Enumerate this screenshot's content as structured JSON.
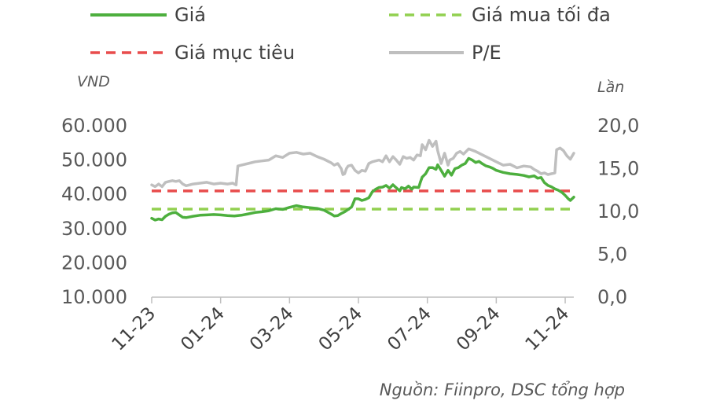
{
  "chart_data": {
    "type": "line",
    "legend": {
      "position": "top",
      "entries": [
        {
          "key": "price",
          "label": "Giá",
          "color": "#4daf3e",
          "style": "solid"
        },
        {
          "key": "buy_max",
          "label": "Giá mua tối đa",
          "color": "#92d050",
          "style": "dashed"
        },
        {
          "key": "target",
          "label": "Giá mục tiêu",
          "color": "#e84c4c",
          "style": "dashed"
        },
        {
          "key": "pe",
          "label": "P/E",
          "color": "#bfbfbf",
          "style": "solid"
        }
      ]
    },
    "y_left": {
      "unit": "VND",
      "ticks": [
        "60.000",
        "50.000",
        "40.000",
        "30.000",
        "20.000",
        "10.000"
      ],
      "tick_values": [
        60000,
        50000,
        40000,
        30000,
        20000,
        10000
      ],
      "range": [
        10000,
        60000
      ]
    },
    "y_right": {
      "unit": "Lần",
      "ticks": [
        "20,0",
        "15,0",
        "10,0",
        "5,0",
        "0,0"
      ],
      "tick_values": [
        20,
        15,
        10,
        5,
        0
      ],
      "range": [
        0,
        20
      ]
    },
    "x_axis": {
      "ticks": [
        "11-23",
        "01-24",
        "03-24",
        "05-24",
        "07-24",
        "09-24",
        "11-24"
      ],
      "tick_positions": [
        0,
        2,
        4,
        6,
        8,
        10,
        12
      ],
      "range": [
        0,
        12.25
      ]
    },
    "reference_lines": {
      "target_price": 41000,
      "max_buy_price": 35700
    },
    "series": [
      {
        "name": "Giá",
        "axis": "left",
        "color": "#4daf3e",
        "points": [
          [
            0,
            33000
          ],
          [
            0.1,
            32500
          ],
          [
            0.2,
            32800
          ],
          [
            0.3,
            32600
          ],
          [
            0.4,
            33600
          ],
          [
            0.5,
            34200
          ],
          [
            0.6,
            34600
          ],
          [
            0.7,
            34700
          ],
          [
            0.8,
            34000
          ],
          [
            0.9,
            33300
          ],
          [
            1.0,
            33200
          ],
          [
            1.2,
            33600
          ],
          [
            1.4,
            33900
          ],
          [
            1.6,
            34000
          ],
          [
            1.8,
            34100
          ],
          [
            2.0,
            34000
          ],
          [
            2.2,
            33800
          ],
          [
            2.4,
            33700
          ],
          [
            2.6,
            33900
          ],
          [
            2.8,
            34300
          ],
          [
            3.0,
            34700
          ],
          [
            3.2,
            34900
          ],
          [
            3.4,
            35200
          ],
          [
            3.6,
            35800
          ],
          [
            3.8,
            35600
          ],
          [
            4.0,
            36200
          ],
          [
            4.2,
            36700
          ],
          [
            4.4,
            36300
          ],
          [
            4.6,
            36100
          ],
          [
            4.8,
            35900
          ],
          [
            5.0,
            35400
          ],
          [
            5.2,
            34300
          ],
          [
            5.3,
            33700
          ],
          [
            5.4,
            33800
          ],
          [
            5.5,
            34400
          ],
          [
            5.6,
            34900
          ],
          [
            5.7,
            35600
          ],
          [
            5.8,
            36300
          ],
          [
            5.85,
            37400
          ],
          [
            5.9,
            38700
          ],
          [
            6.0,
            38700
          ],
          [
            6.1,
            38200
          ],
          [
            6.2,
            38500
          ],
          [
            6.3,
            39000
          ],
          [
            6.4,
            40700
          ],
          [
            6.5,
            41500
          ],
          [
            6.6,
            42000
          ],
          [
            6.7,
            42100
          ],
          [
            6.8,
            42600
          ],
          [
            6.9,
            41800
          ],
          [
            7.0,
            42800
          ],
          [
            7.1,
            41900
          ],
          [
            7.2,
            41000
          ],
          [
            7.25,
            42000
          ],
          [
            7.35,
            41600
          ],
          [
            7.45,
            42400
          ],
          [
            7.55,
            41500
          ],
          [
            7.6,
            42100
          ],
          [
            7.75,
            42000
          ],
          [
            7.8,
            43600
          ],
          [
            7.85,
            45000
          ],
          [
            7.95,
            46000
          ],
          [
            8.05,
            47800
          ],
          [
            8.15,
            47800
          ],
          [
            8.25,
            47300
          ],
          [
            8.3,
            48600
          ],
          [
            8.4,
            47000
          ],
          [
            8.5,
            45300
          ],
          [
            8.6,
            47000
          ],
          [
            8.7,
            45600
          ],
          [
            8.8,
            47500
          ],
          [
            8.9,
            47800
          ],
          [
            9.0,
            48500
          ],
          [
            9.1,
            49000
          ],
          [
            9.2,
            50500
          ],
          [
            9.3,
            50000
          ],
          [
            9.4,
            49300
          ],
          [
            9.5,
            49600
          ],
          [
            9.6,
            48900
          ],
          [
            9.7,
            48300
          ],
          [
            9.8,
            48000
          ],
          [
            9.9,
            47600
          ],
          [
            10.0,
            47000
          ],
          [
            10.2,
            46400
          ],
          [
            10.4,
            46000
          ],
          [
            10.6,
            45800
          ],
          [
            10.8,
            45500
          ],
          [
            10.95,
            45100
          ],
          [
            11.1,
            45400
          ],
          [
            11.2,
            44700
          ],
          [
            11.3,
            44900
          ],
          [
            11.4,
            43400
          ],
          [
            11.5,
            42600
          ],
          [
            11.6,
            42200
          ],
          [
            11.7,
            41600
          ],
          [
            11.8,
            41200
          ],
          [
            11.9,
            40600
          ],
          [
            12.0,
            39700
          ],
          [
            12.1,
            38600
          ],
          [
            12.15,
            38200
          ],
          [
            12.25,
            39200
          ]
        ]
      },
      {
        "name": "P/E",
        "axis": "right",
        "color": "#bfbfbf",
        "points": [
          [
            0,
            13.1
          ],
          [
            0.1,
            12.9
          ],
          [
            0.2,
            13.2
          ],
          [
            0.3,
            12.9
          ],
          [
            0.4,
            13.4
          ],
          [
            0.5,
            13.5
          ],
          [
            0.6,
            13.6
          ],
          [
            0.7,
            13.5
          ],
          [
            0.8,
            13.6
          ],
          [
            0.9,
            13.2
          ],
          [
            1.0,
            13.0
          ],
          [
            1.2,
            13.2
          ],
          [
            1.4,
            13.3
          ],
          [
            1.6,
            13.4
          ],
          [
            1.8,
            13.2
          ],
          [
            2.0,
            13.3
          ],
          [
            2.2,
            13.2
          ],
          [
            2.35,
            13.3
          ],
          [
            2.45,
            13.1
          ],
          [
            2.5,
            15.3
          ],
          [
            2.6,
            15.4
          ],
          [
            2.8,
            15.6
          ],
          [
            3.0,
            15.8
          ],
          [
            3.2,
            15.9
          ],
          [
            3.4,
            16.0
          ],
          [
            3.6,
            16.5
          ],
          [
            3.8,
            16.3
          ],
          [
            4.0,
            16.8
          ],
          [
            4.2,
            16.9
          ],
          [
            4.4,
            16.7
          ],
          [
            4.6,
            16.8
          ],
          [
            4.8,
            16.4
          ],
          [
            5.0,
            16.1
          ],
          [
            5.2,
            15.7
          ],
          [
            5.3,
            15.4
          ],
          [
            5.4,
            15.6
          ],
          [
            5.5,
            15.0
          ],
          [
            5.55,
            14.3
          ],
          [
            5.6,
            14.4
          ],
          [
            5.65,
            15.0
          ],
          [
            5.7,
            15.3
          ],
          [
            5.8,
            15.4
          ],
          [
            5.9,
            14.8
          ],
          [
            6.0,
            14.5
          ],
          [
            6.1,
            14.8
          ],
          [
            6.2,
            14.7
          ],
          [
            6.3,
            15.6
          ],
          [
            6.4,
            15.8
          ],
          [
            6.5,
            15.9
          ],
          [
            6.6,
            16.0
          ],
          [
            6.7,
            15.8
          ],
          [
            6.8,
            16.5
          ],
          [
            6.9,
            15.8
          ],
          [
            7.0,
            16.4
          ],
          [
            7.1,
            16.0
          ],
          [
            7.2,
            15.5
          ],
          [
            7.3,
            16.4
          ],
          [
            7.4,
            16.2
          ],
          [
            7.5,
            16.3
          ],
          [
            7.6,
            16.0
          ],
          [
            7.7,
            16.6
          ],
          [
            7.8,
            16.5
          ],
          [
            7.85,
            17.8
          ],
          [
            7.95,
            17.2
          ],
          [
            8.05,
            18.3
          ],
          [
            8.15,
            17.6
          ],
          [
            8.25,
            18.2
          ],
          [
            8.3,
            17.1
          ],
          [
            8.4,
            15.6
          ],
          [
            8.5,
            16.8
          ],
          [
            8.6,
            15.4
          ],
          [
            8.65,
            16.0
          ],
          [
            8.75,
            16.2
          ],
          [
            8.85,
            16.8
          ],
          [
            8.95,
            17.0
          ],
          [
            9.05,
            16.7
          ],
          [
            9.2,
            17.3
          ],
          [
            9.4,
            17.0
          ],
          [
            9.6,
            16.6
          ],
          [
            9.8,
            16.2
          ],
          [
            10.0,
            15.8
          ],
          [
            10.2,
            15.4
          ],
          [
            10.4,
            15.5
          ],
          [
            10.6,
            15.1
          ],
          [
            10.8,
            15.3
          ],
          [
            11.0,
            15.2
          ],
          [
            11.1,
            14.9
          ],
          [
            11.2,
            14.7
          ],
          [
            11.3,
            14.4
          ],
          [
            11.4,
            14.5
          ],
          [
            11.5,
            14.3
          ],
          [
            11.6,
            14.4
          ],
          [
            11.7,
            14.5
          ],
          [
            11.75,
            17.2
          ],
          [
            11.85,
            17.4
          ],
          [
            11.95,
            17.1
          ],
          [
            12.05,
            16.5
          ],
          [
            12.15,
            16.1
          ],
          [
            12.25,
            16.8
          ]
        ]
      }
    ],
    "source": "Nguồn: Fiinpro, DSC tổng hợp"
  }
}
